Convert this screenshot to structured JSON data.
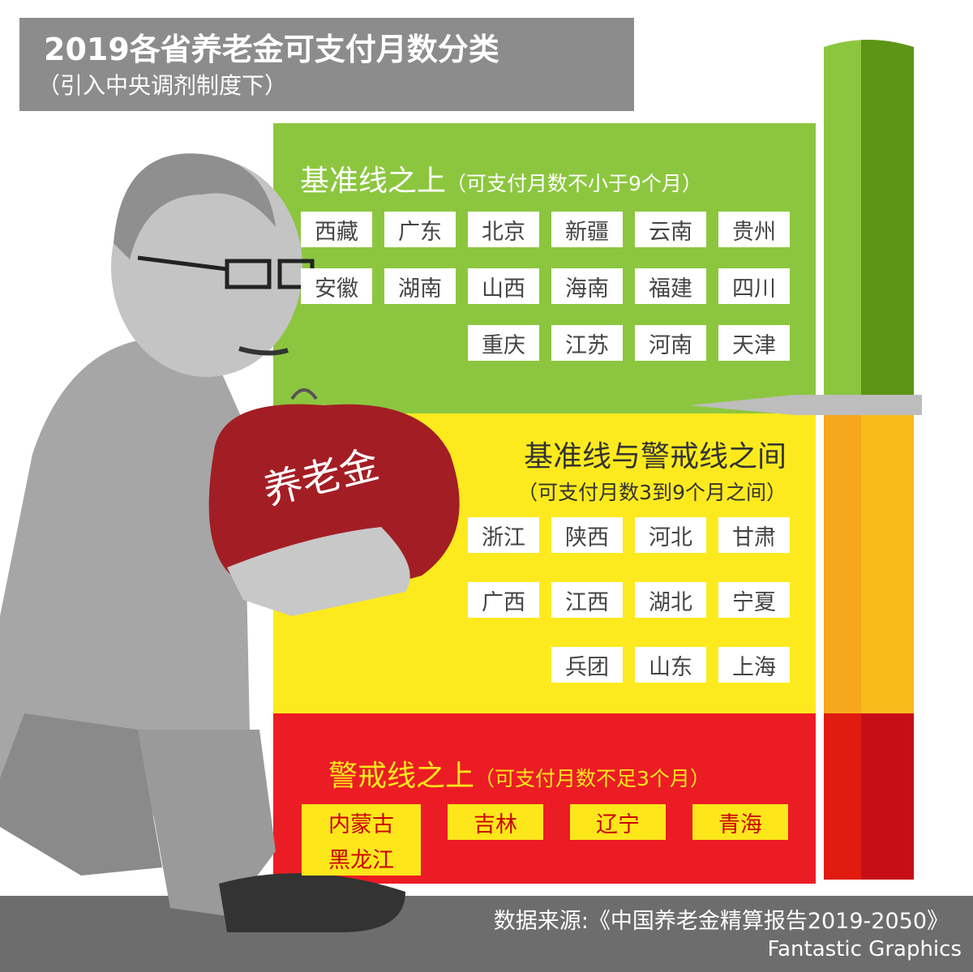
{
  "header": {
    "title": "2019各省养老金可支付月数分类",
    "subtitle": "（引入中央调剂制度下）"
  },
  "sections": [
    {
      "title": "基准线之上",
      "note": "（可支付月数不小于9个月）",
      "provinces": [
        "西藏",
        "广东",
        "北京",
        "新疆",
        "云南",
        "贵州",
        "安徽",
        "湖南",
        "山西",
        "海南",
        "福建",
        "四川",
        "重庆",
        "江苏",
        "河南",
        "天津"
      ]
    },
    {
      "title": "基准线与警戒线之间",
      "note": "（可支付月数3到9个月之间）",
      "provinces": [
        "浙江",
        "陕西",
        "河北",
        "甘肃",
        "广西",
        "江西",
        "湖北",
        "宁夏",
        "兵团",
        "山东",
        "上海"
      ]
    },
    {
      "title": "警戒线之上",
      "note": "（可支付月数不足3个月）",
      "provinces": [
        "内蒙古",
        "吉林",
        "辽宁",
        "青海",
        "黑龙江"
      ]
    }
  ],
  "purse_label": "养老金",
  "footer": {
    "source": "数据来源:《中国养老金精算报告2019-2050》",
    "brand": "Fantastic Graphics"
  }
}
